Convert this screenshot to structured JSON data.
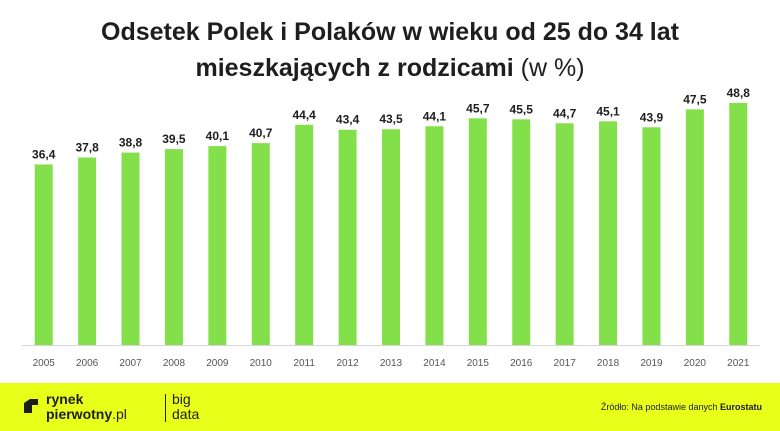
{
  "title": {
    "line1": "Odsetek Polek i Polaków w wieku od 25 do 34 lat",
    "line2": "mieszkających z rodzicami",
    "unit": "(w %)"
  },
  "colors": {
    "bar": "#84e04a",
    "footer": "#e8ff1a",
    "text": "#1e1e1e"
  },
  "chart_data": {
    "type": "bar",
    "categories": [
      "2005",
      "2006",
      "2007",
      "2008",
      "2009",
      "2010",
      "2011",
      "2012",
      "2013",
      "2014",
      "2015",
      "2016",
      "2017",
      "2018",
      "2019",
      "2020",
      "2021"
    ],
    "values": [
      36.4,
      37.8,
      38.8,
      39.5,
      40.1,
      40.7,
      44.4,
      43.4,
      43.5,
      44.1,
      45.7,
      45.5,
      44.7,
      45.1,
      43.9,
      47.5,
      48.8
    ],
    "value_labels": [
      "36,4",
      "37,8",
      "38,8",
      "39,5",
      "40,1",
      "40,7",
      "44,4",
      "43,4",
      "43,5",
      "44,1",
      "45,7",
      "45,5",
      "44,7",
      "45,1",
      "43,9",
      "47,5",
      "48,8"
    ],
    "title": "Odsetek Polek i Polaków w wieku od 25 do 34 lat mieszkających z rodzicami (w %)",
    "ylim": [
      0,
      50
    ],
    "grid": false
  },
  "footer": {
    "logo_line1": "rynek",
    "logo_line2": "pierwotny",
    "logo_suffix": ".pl",
    "sub_line1": "big",
    "sub_line2": "data",
    "source_prefix": "Źródło: Na podstawie danych ",
    "source_name": "Eurostatu"
  }
}
